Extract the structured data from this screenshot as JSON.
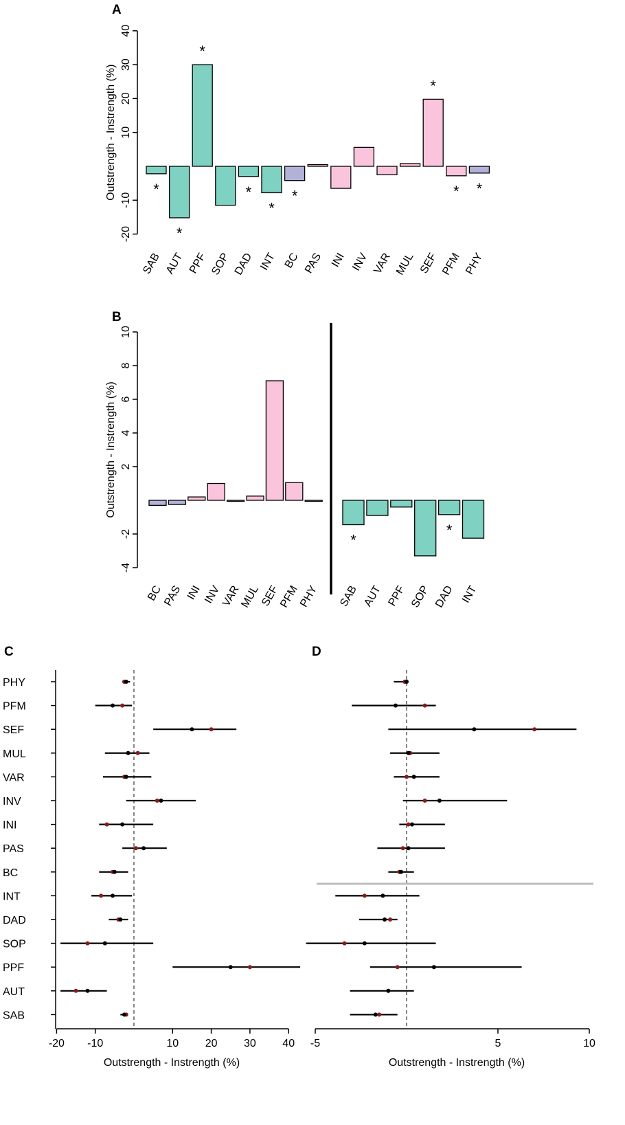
{
  "colors": {
    "green": "#7fd1c1",
    "pink": "#fac5dc",
    "purple": "#b2b2d9",
    "dark_red": "#8b1a1a",
    "grey_line": "#bdbdbd"
  },
  "chart_data": [
    {
      "panel": "A",
      "type": "bar",
      "ylabel": "Outstrength - Instrength (%)",
      "ylim": [
        -20,
        40
      ],
      "yticks": [
        "-20",
        "-10",
        "10",
        "20",
        "30",
        "40"
      ],
      "bars": [
        {
          "label": "SAB",
          "value": -2.2,
          "color": "green",
          "star": "*"
        },
        {
          "label": "AUT",
          "value": -15.2,
          "color": "green",
          "star": "*"
        },
        {
          "label": "PPF",
          "value": 30.0,
          "color": "green",
          "star": "*"
        },
        {
          "label": "SOP",
          "value": -11.5,
          "color": "green",
          "star": ""
        },
        {
          "label": "DAD",
          "value": -3.0,
          "color": "green",
          "star": "*"
        },
        {
          "label": "INT",
          "value": -7.8,
          "color": "green",
          "star": "*"
        },
        {
          "label": "BC",
          "value": -4.2,
          "color": "purple",
          "star": "*"
        },
        {
          "label": "PAS",
          "value": 0.5,
          "color": "pink",
          "star": ""
        },
        {
          "label": "INI",
          "value": -6.5,
          "color": "pink",
          "star": ""
        },
        {
          "label": "INV",
          "value": 5.6,
          "color": "pink",
          "star": ""
        },
        {
          "label": "VAR",
          "value": -2.5,
          "color": "pink",
          "star": ""
        },
        {
          "label": "MUL",
          "value": 0.8,
          "color": "pink",
          "star": ""
        },
        {
          "label": "SEF",
          "value": 19.8,
          "color": "pink",
          "star": "*"
        },
        {
          "label": "PFM",
          "value": -2.8,
          "color": "pink",
          "star": "*"
        },
        {
          "label": "PHY",
          "value": -2.0,
          "color": "purple",
          "star": "*"
        }
      ]
    },
    {
      "panel": "B",
      "type": "bar",
      "ylabel": "Outstrength - Instrength (%)",
      "ylim": [
        -4,
        10
      ],
      "yticks": [
        "-4",
        "-2",
        "2",
        "4",
        "6",
        "8",
        "10"
      ],
      "groups": [
        [
          {
            "label": "BC",
            "value": -0.3,
            "color": "purple",
            "star": ""
          },
          {
            "label": "PAS",
            "value": -0.25,
            "color": "purple",
            "star": ""
          },
          {
            "label": "INI",
            "value": 0.2,
            "color": "pink",
            "star": ""
          },
          {
            "label": "INV",
            "value": 1.0,
            "color": "pink",
            "star": ""
          },
          {
            "label": "VAR",
            "value": 0.0,
            "color": "pink",
            "star": ""
          },
          {
            "label": "MUL",
            "value": 0.25,
            "color": "pink",
            "star": ""
          },
          {
            "label": "SEF",
            "value": 7.1,
            "color": "pink",
            "star": ""
          },
          {
            "label": "PFM",
            "value": 1.05,
            "color": "pink",
            "star": ""
          },
          {
            "label": "PHY",
            "value": 0.0,
            "color": "pink",
            "star": ""
          }
        ],
        [
          {
            "label": "SAB",
            "value": -1.45,
            "color": "green",
            "star": "*"
          },
          {
            "label": "AUT",
            "value": -0.9,
            "color": "green",
            "star": ""
          },
          {
            "label": "PPF",
            "value": -0.4,
            "color": "green",
            "star": ""
          },
          {
            "label": "SOP",
            "value": -3.3,
            "color": "green",
            "star": ""
          },
          {
            "label": "DAD",
            "value": -0.85,
            "color": "green",
            "star": "*"
          },
          {
            "label": "INT",
            "value": -2.25,
            "color": "green",
            "star": ""
          }
        ]
      ]
    },
    {
      "panel": "C",
      "type": "scatter",
      "xlabel": "Outstrength - Instrength (%)",
      "xlim": [
        -20,
        40
      ],
      "xticks": [
        "-20",
        "-10",
        "10",
        "20",
        "30",
        "40"
      ],
      "rows": [
        {
          "label": "PHY",
          "lo": -3,
          "hi": -1,
          "black": -2,
          "red": -2.5
        },
        {
          "label": "PFM",
          "lo": -10,
          "hi": -0.5,
          "black": -5.5,
          "red": -3
        },
        {
          "label": "SEF",
          "lo": 5,
          "hi": 26.5,
          "black": 15,
          "red": 20
        },
        {
          "label": "MUL",
          "lo": -7.5,
          "hi": 4,
          "black": -1.5,
          "red": 1
        },
        {
          "label": "VAR",
          "lo": -8,
          "hi": 4.5,
          "black": -2,
          "red": -2.5
        },
        {
          "label": "INV",
          "lo": -2,
          "hi": 16,
          "black": 7,
          "red": 6
        },
        {
          "label": "INI",
          "lo": -9,
          "hi": 5,
          "black": -3,
          "red": -7
        },
        {
          "label": "PAS",
          "lo": -3,
          "hi": 8.5,
          "black": 2.5,
          "red": 0.5
        },
        {
          "label": "BC",
          "lo": -9,
          "hi": -1.5,
          "black": -5,
          "red": -5.5
        },
        {
          "label": "INT",
          "lo": -11,
          "hi": -0.5,
          "black": -5.5,
          "red": -8.5
        },
        {
          "label": "DAD",
          "lo": -6.5,
          "hi": -1.5,
          "black": -3.5,
          "red": -4
        },
        {
          "label": "SOP",
          "lo": -19,
          "hi": 5,
          "black": -7.5,
          "red": -12
        },
        {
          "label": "PPF",
          "lo": 10,
          "hi": 43,
          "black": 25,
          "red": 30
        },
        {
          "label": "AUT",
          "lo": -19,
          "hi": -7,
          "black": -12,
          "red": -15
        },
        {
          "label": "SAB",
          "lo": -3.5,
          "hi": -1.5,
          "black": -2.5,
          "red": -2
        }
      ]
    },
    {
      "panel": "D",
      "type": "scatter",
      "xlabel": "Outstrength - Instrength (%)",
      "xlim": [
        -5,
        10
      ],
      "xticks": [
        "-5",
        "5",
        "10"
      ],
      "rows": [
        {
          "label": "PHY",
          "lo": -0.7,
          "hi": 0.1,
          "black": 0,
          "red": -0.1
        },
        {
          "label": "PFM",
          "lo": -3,
          "hi": 1.6,
          "black": -0.6,
          "red": 1
        },
        {
          "label": "SEF",
          "lo": -1,
          "hi": 9.3,
          "black": 3.7,
          "red": 7
        },
        {
          "label": "MUL",
          "lo": -0.9,
          "hi": 1.8,
          "black": 0.1,
          "red": 0.2
        },
        {
          "label": "VAR",
          "lo": -0.7,
          "hi": 1.8,
          "black": 0.4,
          "red": 0
        },
        {
          "label": "INV",
          "lo": -0.2,
          "hi": 5.5,
          "black": 1.8,
          "red": 1
        },
        {
          "label": "INI",
          "lo": -0.4,
          "hi": 2.1,
          "black": 0.3,
          "red": 0.1
        },
        {
          "label": "PAS",
          "lo": -1.6,
          "hi": 2.1,
          "black": 0.1,
          "red": -0.2
        },
        {
          "label": "BC",
          "lo": -1,
          "hi": 0.4,
          "black": -0.3,
          "red": -0.4
        },
        {
          "label": "INT",
          "lo": -3.9,
          "hi": 0.7,
          "black": -1.3,
          "red": -2.3
        },
        {
          "label": "DAD",
          "lo": -2.6,
          "hi": -0.5,
          "black": -1.2,
          "red": -0.9
        },
        {
          "label": "SOP",
          "lo": -5.5,
          "hi": 1.6,
          "black": -2.3,
          "red": -3.4
        },
        {
          "label": "PPF",
          "lo": -2,
          "hi": 6.3,
          "black": 1.5,
          "red": -0.5
        },
        {
          "label": "AUT",
          "lo": -3.1,
          "hi": 0.4,
          "black": -1,
          "red": -1
        },
        {
          "label": "SAB",
          "lo": -3.1,
          "hi": -0.5,
          "black": -1.7,
          "red": -1.5
        }
      ]
    }
  ]
}
